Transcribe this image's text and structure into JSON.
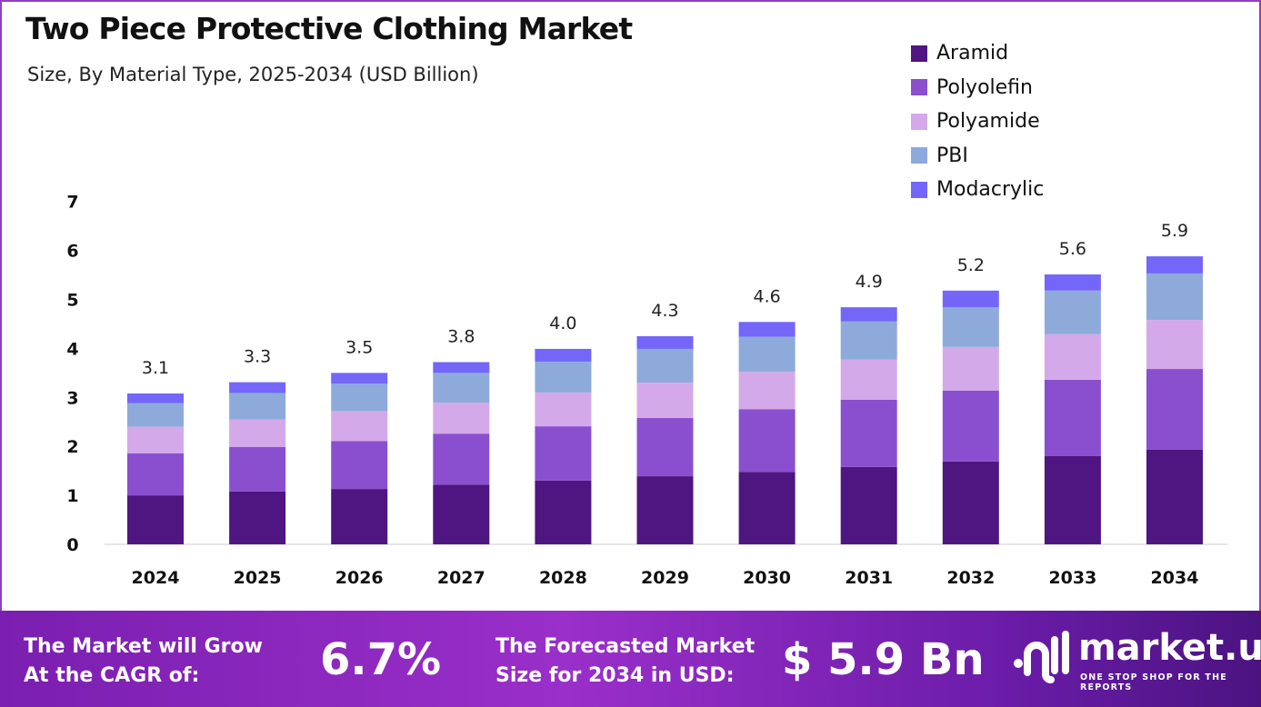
{
  "chart_data": {
    "type": "bar",
    "stacked": true,
    "title": "Two Piece Protective Clothing Market",
    "subtitle": "Size, By Material Type, 2025-2034 (USD Billion)",
    "categories": [
      "2024",
      "2025",
      "2026",
      "2027",
      "2028",
      "2029",
      "2030",
      "2031",
      "2032",
      "2033",
      "2034"
    ],
    "totals": [
      "3.1",
      "3.3",
      "3.5",
      "3.8",
      "4.0",
      "4.3",
      "4.6",
      "4.9",
      "5.2",
      "5.6",
      "5.9"
    ],
    "series": [
      {
        "name": "Aramid",
        "color": "#4f1580",
        "values": [
          1.0,
          1.08,
          1.13,
          1.22,
          1.3,
          1.39,
          1.48,
          1.58,
          1.69,
          1.8,
          1.93
        ]
      },
      {
        "name": "Polyolefin",
        "color": "#8a4fcf",
        "values": [
          0.86,
          0.91,
          0.98,
          1.04,
          1.11,
          1.19,
          1.28,
          1.37,
          1.45,
          1.56,
          1.65
        ]
      },
      {
        "name": "Polyamide",
        "color": "#d4a9e9",
        "values": [
          0.54,
          0.56,
          0.61,
          0.63,
          0.69,
          0.72,
          0.76,
          0.82,
          0.89,
          0.93,
          1.0
        ]
      },
      {
        "name": "PBI",
        "color": "#8eaadb",
        "values": [
          0.48,
          0.54,
          0.56,
          0.61,
          0.63,
          0.69,
          0.72,
          0.78,
          0.81,
          0.89,
          0.95
        ]
      },
      {
        "name": "Modacrylic",
        "color": "#7466f8",
        "values": [
          0.2,
          0.22,
          0.22,
          0.22,
          0.26,
          0.26,
          0.3,
          0.29,
          0.34,
          0.33,
          0.35
        ]
      }
    ],
    "yticks": [
      "0",
      "1",
      "2",
      "3",
      "4",
      "5",
      "6",
      "7"
    ],
    "ylim": [
      0,
      7
    ],
    "grid": false,
    "legend": "top-right"
  },
  "footer": {
    "cagr_label_1": "The Market will Grow",
    "cagr_label_2": "At the CAGR of:",
    "cagr_value": "6.7%",
    "forecast_label_1": "The Forecasted Market",
    "forecast_label_2": "Size for 2034 in USD:",
    "forecast_value": "$ 5.9 Bn",
    "logo_name": "market.us",
    "logo_tagline": "ONE STOP SHOP FOR THE REPORTS"
  }
}
